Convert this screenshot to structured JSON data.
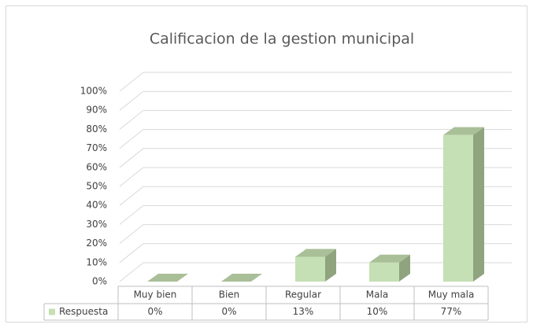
{
  "chart_data": {
    "type": "bar3d",
    "title": "Calificacion de la gestion municipal",
    "categories": [
      "Muy bien",
      "Bien",
      "Regular",
      "Mala",
      "Muy mala"
    ],
    "series": [
      {
        "name": "Respuesta",
        "color": "#c5e0b4",
        "values": [
          0,
          0,
          13,
          10,
          77
        ],
        "value_labels": [
          "0%",
          "0%",
          "13%",
          "10%",
          "77%"
        ]
      }
    ],
    "ylim": [
      0,
      100
    ],
    "yticks": [
      {
        "value": 0,
        "label": "0%"
      },
      {
        "value": 10,
        "label": "10%"
      },
      {
        "value": 20,
        "label": "20%"
      },
      {
        "value": 30,
        "label": "30%"
      },
      {
        "value": 40,
        "label": "40%"
      },
      {
        "value": 50,
        "label": "50%"
      },
      {
        "value": 60,
        "label": "60%"
      },
      {
        "value": 70,
        "label": "70%"
      },
      {
        "value": 80,
        "label": "80%"
      },
      {
        "value": 90,
        "label": "90%"
      },
      {
        "value": 100,
        "label": "100%"
      }
    ],
    "grid": true
  }
}
